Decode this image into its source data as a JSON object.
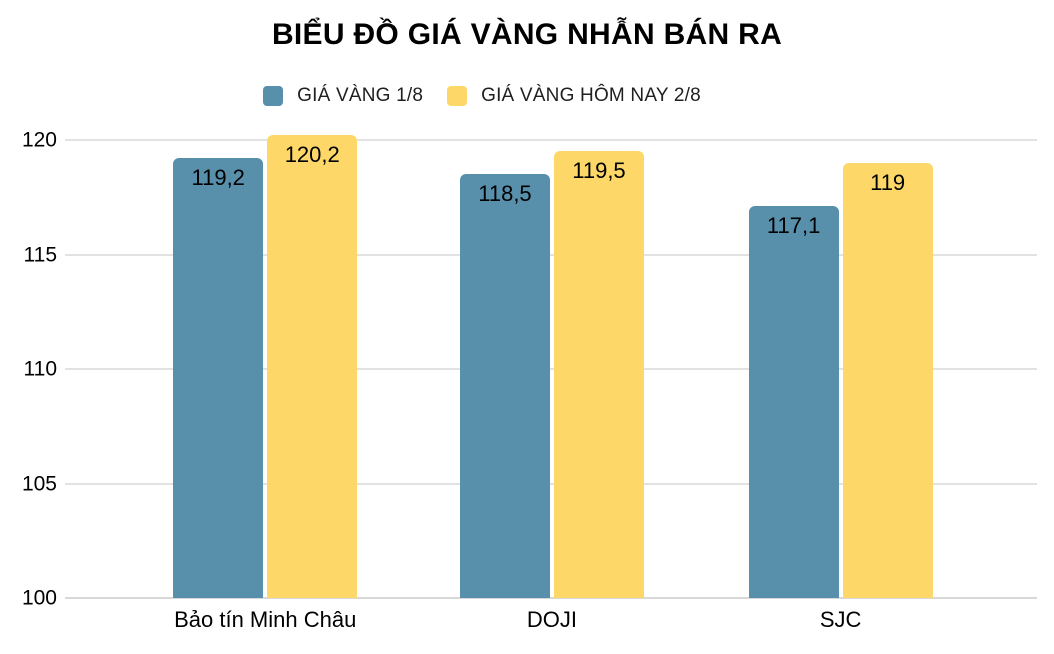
{
  "title": "BIỂU ĐỒ GIÁ VÀNG NHẪN BÁN RA",
  "chart_data": {
    "type": "bar",
    "title": "BIỂU ĐỒ GIÁ VÀNG NHẪN BÁN RA",
    "categories": [
      "Bảo tín Minh Châu",
      "DOJI",
      "SJC"
    ],
    "series": [
      {
        "name": "GIÁ VÀNG 1/8",
        "color": "#5890AC",
        "values": [
          119.2,
          118.5,
          117.1
        ],
        "value_labels": [
          "119,2",
          "118,5",
          "117,1"
        ]
      },
      {
        "name": "GIÁ VÀNG HÔM NAY 2/8",
        "color": "#FDD868",
        "values": [
          120.2,
          119.5,
          119
        ],
        "value_labels": [
          "120,2",
          "119,5",
          "119"
        ]
      }
    ],
    "ylim": [
      100,
      120
    ],
    "yticks": [
      "100",
      "105",
      "110",
      "115",
      "120"
    ],
    "xlabel": "",
    "ylabel": "",
    "grid": true,
    "legend_position": "top",
    "value_label_position": "inside-top",
    "gridline_color": "#e2e2e2",
    "background_color": "#ffffff"
  }
}
